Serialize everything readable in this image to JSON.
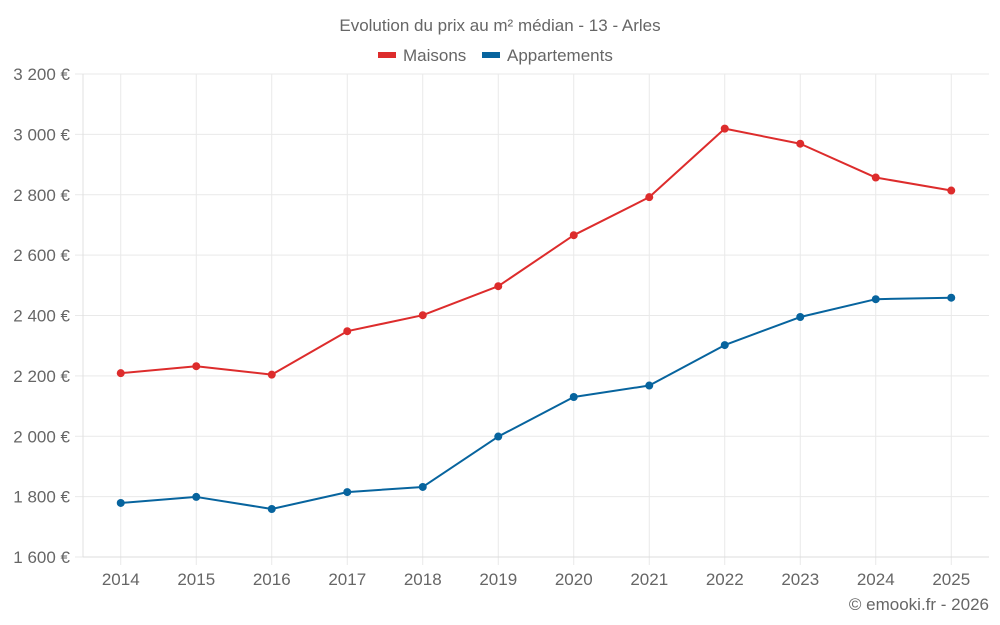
{
  "chart_data": {
    "type": "line",
    "title": "Evolution du prix au m² médian - 13 - Arles",
    "xlabel": "",
    "ylabel": "",
    "categories": [
      "2014",
      "2015",
      "2016",
      "2017",
      "2018",
      "2019",
      "2020",
      "2021",
      "2022",
      "2023",
      "2024",
      "2025"
    ],
    "series": [
      {
        "name": "Maisons",
        "color": "#dd2c2c",
        "values": [
          2209,
          2232,
          2204,
          2348,
          2401,
          2497,
          2666,
          2792,
          3019,
          2969,
          2857,
          2814
        ]
      },
      {
        "name": "Appartements",
        "color": "#07649e",
        "values": [
          1779,
          1799,
          1759,
          1815,
          1832,
          1999,
          2130,
          2168,
          2302,
          2395,
          2454,
          2459
        ]
      }
    ],
    "ylim": [
      1600,
      3200
    ],
    "yticks": [
      1600,
      1800,
      2000,
      2200,
      2400,
      2600,
      2800,
      3000,
      3200
    ],
    "ytick_labels": [
      "1 600 €",
      "1 800 €",
      "2 000 €",
      "2 200 €",
      "2 400 €",
      "2 600 €",
      "2 800 €",
      "3 000 €",
      "3 200 €"
    ],
    "grid": true,
    "legend_position": "top-center"
  },
  "credit": "© emooki.fr - 2026"
}
